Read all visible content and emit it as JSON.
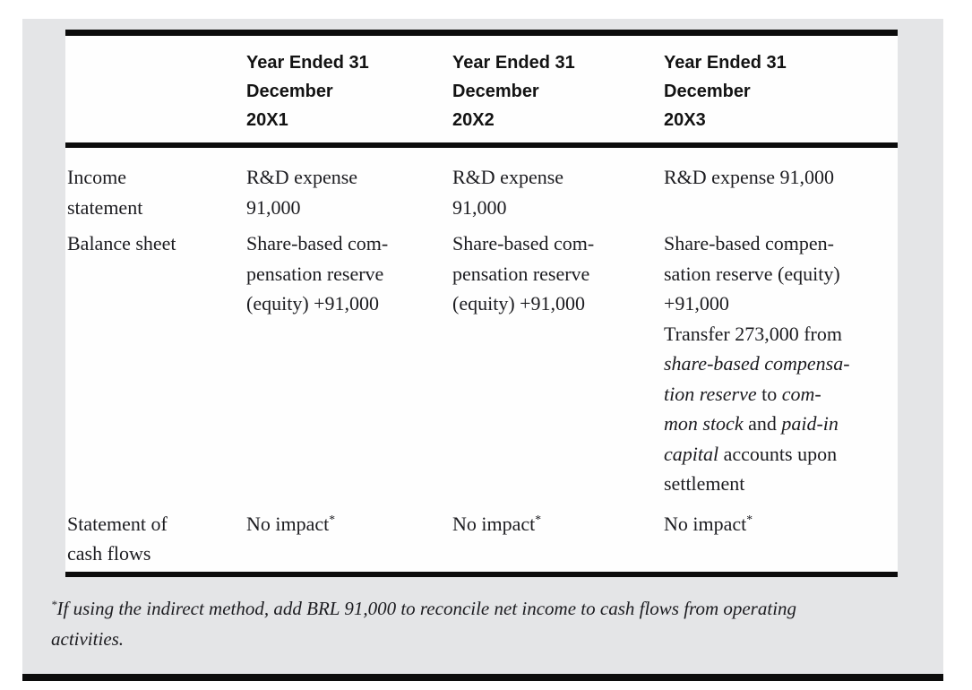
{
  "colors": {
    "page_background": "#ffffff",
    "panel_background": "#e4e5e7",
    "rule_black": "#0c0c0c",
    "header_text": "#131313",
    "body_text": "#1c1c20"
  },
  "table": {
    "header_columns": [
      {
        "lines": []
      },
      {
        "lines": [
          "Year Ended 31",
          "December",
          "20X1"
        ]
      },
      {
        "lines": [
          "Year Ended 31",
          "December",
          "20X2"
        ]
      },
      {
        "lines": [
          "Year Ended 31",
          "December",
          "20X3"
        ]
      }
    ],
    "rows": [
      {
        "name": "income-statement",
        "label_lines": [
          [
            "Income"
          ],
          [
            "statement"
          ]
        ],
        "cells": [
          {
            "lines": [
              [
                "R&D expense"
              ],
              [
                "91,000"
              ]
            ]
          },
          {
            "lines": [
              [
                "R&D expense"
              ],
              [
                "91,000"
              ]
            ]
          },
          {
            "lines": [
              [
                "R&D expense 91,000"
              ]
            ]
          }
        ]
      },
      {
        "name": "balance-sheet",
        "label_lines": [
          [
            "Balance sheet"
          ]
        ],
        "cells": [
          {
            "lines": [
              [
                "Share-based com-"
              ],
              [
                "pensation reserve"
              ],
              [
                "(equity) +91,000"
              ]
            ]
          },
          {
            "lines": [
              [
                "Share-based com-"
              ],
              [
                "pensation reserve"
              ],
              [
                "(equity) +91,000"
              ]
            ]
          },
          {
            "lines": [
              [
                "Share-based compen-"
              ],
              [
                "sation reserve (equity)"
              ],
              [
                "+91,000"
              ],
              [
                "Transfer 273,000 from"
              ],
              [
                {
                  "t": "share-based compensa-",
                  "i": true
                }
              ],
              [
                {
                  "t": "tion reserve",
                  "i": true
                },
                " to ",
                {
                  "t": "com-",
                  "i": true
                }
              ],
              [
                {
                  "t": "mon stock",
                  "i": true
                },
                " and ",
                {
                  "t": "paid-in",
                  "i": true
                }
              ],
              [
                {
                  "t": "capital",
                  "i": true
                },
                " accounts upon"
              ],
              [
                "settlement"
              ]
            ]
          }
        ]
      },
      {
        "name": "statement-of-cash-flows",
        "label_lines": [
          [
            "Statement of"
          ],
          [
            "cash flows"
          ]
        ],
        "cells": [
          {
            "lines": [
              [
                "No impact",
                {
                  "t": "*",
                  "sup": true
                }
              ]
            ]
          },
          {
            "lines": [
              [
                "No impact",
                {
                  "t": "*",
                  "sup": true
                }
              ]
            ]
          },
          {
            "lines": [
              [
                "No impact",
                {
                  "t": "*",
                  "sup": true
                }
              ]
            ]
          }
        ]
      }
    ],
    "footnote_lines": [
      [
        {
          "t": "*",
          "sup": true
        },
        "If using the indirect method, add BRL 91,000 to reconcile net income to cash flows from operating"
      ],
      [
        "activities."
      ]
    ]
  }
}
